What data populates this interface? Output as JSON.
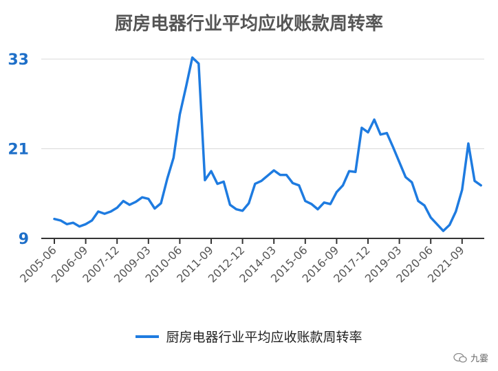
{
  "chart_data": {
    "type": "line",
    "title": "厨房电器行业平均应收账款周转率",
    "x_tick_labels": [
      "2005-06",
      "2006-09",
      "2007-12",
      "2009-03",
      "2010-06",
      "2011-09",
      "2012-12",
      "2014-03",
      "2015-06",
      "2016-09",
      "2017-12",
      "2019-03",
      "2020-06",
      "2021-09"
    ],
    "y_ticks": [
      9,
      21,
      33
    ],
    "ylim": [
      9,
      33
    ],
    "grid": true,
    "legend_position": "bottom",
    "series": [
      {
        "name": "厨房电器行业平均应收账款周转率",
        "color": "#1e7be0",
        "values": [
          11.6,
          11.4,
          10.9,
          11.1,
          10.6,
          10.9,
          11.4,
          12.6,
          12.3,
          12.6,
          13.1,
          14.0,
          13.5,
          13.9,
          14.5,
          14.3,
          13.0,
          13.7,
          17.0,
          19.8,
          25.6,
          29.3,
          33.2,
          32.4,
          16.8,
          18.0,
          16.3,
          16.6,
          13.5,
          12.9,
          12.7,
          13.7,
          16.3,
          16.7,
          17.4,
          18.1,
          17.5,
          17.5,
          16.4,
          16.1,
          14.0,
          13.6,
          12.9,
          13.8,
          13.6,
          15.2,
          16.1,
          18.0,
          17.9,
          23.8,
          23.2,
          24.9,
          22.9,
          23.1,
          21.2,
          19.2,
          17.2,
          16.5,
          14.0,
          13.4,
          11.8,
          10.9,
          10.0,
          10.8,
          12.6,
          15.5,
          21.7,
          16.7,
          16.1
        ]
      }
    ]
  },
  "legend": {
    "label": "厨房电器行业平均应收账款周转率"
  },
  "watermark": {
    "text": "九霎"
  }
}
